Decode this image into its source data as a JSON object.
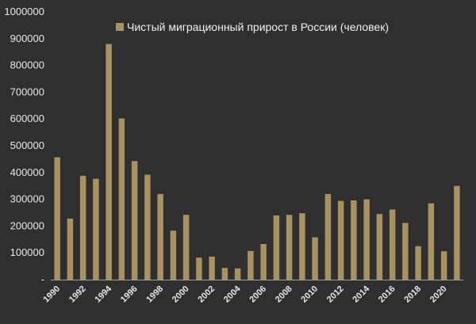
{
  "chart_data": {
    "type": "bar",
    "title": "",
    "xlabel": "",
    "ylabel": "",
    "legend": "top-center",
    "ylim": [
      0,
      1000000
    ],
    "y_ticks": [
      {
        "value": 0,
        "label": "-"
      },
      {
        "value": 100000,
        "label": "100000"
      },
      {
        "value": 200000,
        "label": "200000"
      },
      {
        "value": 300000,
        "label": "300000"
      },
      {
        "value": 400000,
        "label": "400000"
      },
      {
        "value": 500000,
        "label": "500000"
      },
      {
        "value": 600000,
        "label": "600000"
      },
      {
        "value": 700000,
        "label": "700000"
      },
      {
        "value": 800000,
        "label": "800000"
      },
      {
        "value": 900000,
        "label": "900000"
      },
      {
        "value": 1000000,
        "label": "1000000"
      }
    ],
    "categories": [
      "1990",
      "1991",
      "1992",
      "1993",
      "1994",
      "1995",
      "1996",
      "1997",
      "1998",
      "1999",
      "2000",
      "2001",
      "2002",
      "2003",
      "2004",
      "2005",
      "2006",
      "2007",
      "2008",
      "2009",
      "2010",
      "2011",
      "2012",
      "2013",
      "2014",
      "2015",
      "2016",
      "2017",
      "2018",
      "2019",
      "2020",
      "2021"
    ],
    "x_tick_labels": [
      "1990",
      "1992",
      "1994",
      "1996",
      "1998",
      "2000",
      "2002",
      "2004",
      "2006",
      "2008",
      "2010",
      "2012",
      "2014",
      "2016",
      "2018",
      "2020"
    ],
    "series": [
      {
        "name": "Чистый миграционный прирост в России (человек)",
        "color": "#a89260",
        "values": [
          457000,
          228000,
          388000,
          377000,
          880000,
          602000,
          443000,
          392000,
          320000,
          183000,
          242000,
          82000,
          86000,
          44000,
          42000,
          107000,
          133000,
          240000,
          242000,
          248000,
          158000,
          320000,
          294000,
          296000,
          300000,
          245000,
          262000,
          212000,
          125000,
          285000,
          106000,
          350000
        ]
      }
    ]
  }
}
